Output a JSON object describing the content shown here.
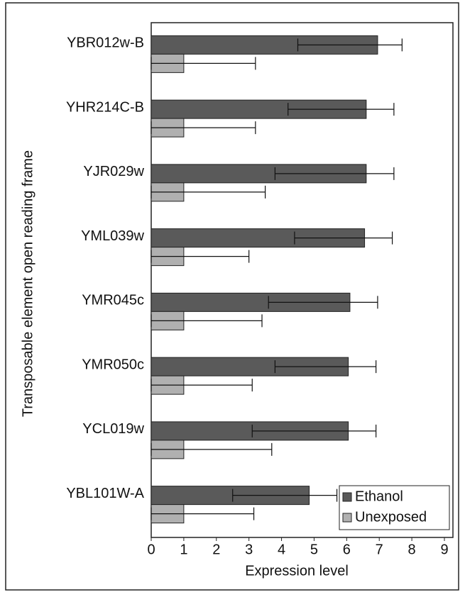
{
  "chart_data": {
    "type": "bar",
    "orientation": "horizontal",
    "x_label": "Expression level",
    "y_label": "Transposable element open reading frame",
    "categories": [
      "YBR012w-B",
      "YHR214C-B",
      "YJR029w",
      "YML039w",
      "YMR045c",
      "YMR050c",
      "YCL019w",
      "YBL101W-A"
    ],
    "series": [
      {
        "name": "Ethanol",
        "color": "#5a5a5a",
        "values": [
          6.95,
          6.6,
          6.6,
          6.55,
          6.1,
          6.05,
          6.05,
          4.85
        ],
        "error_low": [
          4.5,
          4.2,
          3.8,
          4.4,
          3.6,
          3.8,
          3.1,
          2.5
        ],
        "error_high": [
          7.7,
          7.45,
          7.45,
          7.4,
          6.95,
          6.9,
          6.9,
          5.7
        ]
      },
      {
        "name": "Unexposed",
        "color": "#b0b0b0",
        "values": [
          1,
          1,
          1,
          1,
          1,
          1,
          1,
          1
        ],
        "error_low": [
          0,
          0,
          0,
          0,
          0,
          0,
          0,
          0
        ],
        "error_high": [
          3.2,
          3.2,
          3.5,
          3.0,
          3.4,
          3.1,
          3.7,
          3.15
        ]
      }
    ],
    "xlim": [
      0,
      9
    ],
    "xticks": [
      0,
      1,
      2,
      3,
      4,
      5,
      6,
      7,
      8,
      9
    ],
    "legend": "bottom-right"
  }
}
